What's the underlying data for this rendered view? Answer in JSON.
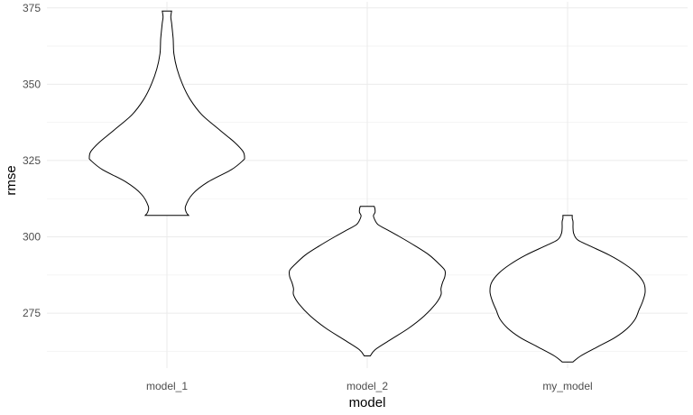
{
  "chart_data": {
    "type": "violin",
    "xlabel": "model",
    "ylabel": "rmse",
    "categories": [
      "model_1",
      "model_2",
      "my_model"
    ],
    "y_ticks": [
      275,
      300,
      325,
      350,
      375
    ],
    "ylim": [
      257,
      377
    ],
    "grid": true,
    "theme": "minimal",
    "series": [
      {
        "category": "model_1",
        "min": 307,
        "max": 374,
        "profile": [
          [
            307,
            0.28
          ],
          [
            308,
            0.25
          ],
          [
            310,
            0.24
          ],
          [
            314,
            0.33
          ],
          [
            318,
            0.53
          ],
          [
            322,
            0.83
          ],
          [
            325,
            0.98
          ],
          [
            326,
            1.0
          ],
          [
            328,
            0.98
          ],
          [
            331,
            0.87
          ],
          [
            335,
            0.68
          ],
          [
            340,
            0.45
          ],
          [
            345,
            0.3
          ],
          [
            350,
            0.2
          ],
          [
            355,
            0.13
          ],
          [
            360,
            0.09
          ],
          [
            365,
            0.08
          ],
          [
            370,
            0.06
          ],
          [
            372,
            0.05
          ],
          [
            374,
            0.06
          ]
        ]
      },
      {
        "category": "model_2",
        "min": 261,
        "max": 310,
        "profile": [
          [
            261,
            0.04
          ],
          [
            263,
            0.1
          ],
          [
            266,
            0.28
          ],
          [
            270,
            0.53
          ],
          [
            274,
            0.73
          ],
          [
            278,
            0.88
          ],
          [
            281,
            0.95
          ],
          [
            283,
            0.95
          ],
          [
            285,
            0.97
          ],
          [
            287,
            1.0
          ],
          [
            289,
            1.0
          ],
          [
            291,
            0.93
          ],
          [
            294,
            0.8
          ],
          [
            297,
            0.62
          ],
          [
            300,
            0.42
          ],
          [
            302,
            0.28
          ],
          [
            304,
            0.14
          ],
          [
            306,
            0.09
          ],
          [
            307,
            0.08
          ],
          [
            308,
            0.1
          ],
          [
            309,
            0.1
          ],
          [
            310,
            0.09
          ]
        ]
      },
      {
        "category": "my_model",
        "min": 259,
        "max": 307,
        "profile": [
          [
            259,
            0.07
          ],
          [
            261,
            0.17
          ],
          [
            264,
            0.39
          ],
          [
            267,
            0.61
          ],
          [
            270,
            0.77
          ],
          [
            273,
            0.87
          ],
          [
            276,
            0.92
          ],
          [
            279,
            0.97
          ],
          [
            282,
            1.0
          ],
          [
            285,
            0.98
          ],
          [
            288,
            0.89
          ],
          [
            291,
            0.74
          ],
          [
            294,
            0.54
          ],
          [
            297,
            0.29
          ],
          [
            299,
            0.13
          ],
          [
            301,
            0.08
          ],
          [
            303,
            0.07
          ],
          [
            305,
            0.07
          ],
          [
            306,
            0.06
          ],
          [
            307,
            0.06
          ]
        ]
      }
    ]
  }
}
